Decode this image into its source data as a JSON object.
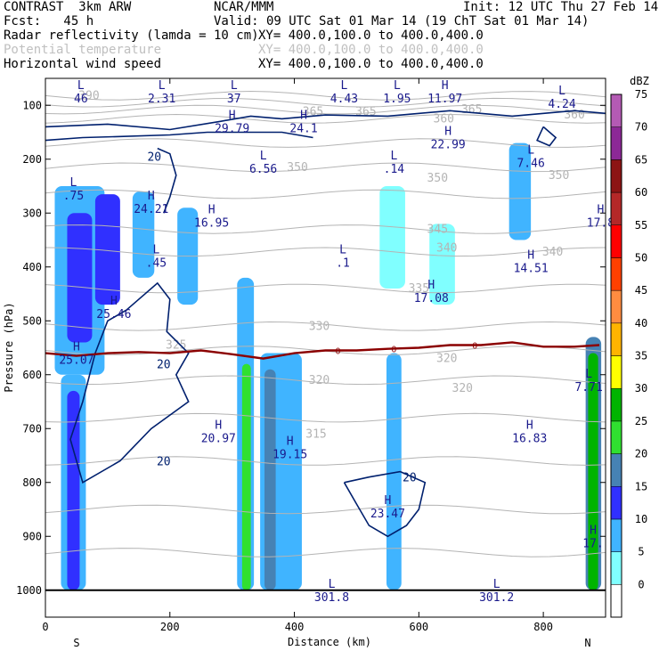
{
  "header": {
    "model": "CONTRAST  3km ARW",
    "org": "NCAR/MMM",
    "init": "Init: 12 UTC Thu 27 Feb 14",
    "fcst": "Fcst:   45 h",
    "valid": "Valid: 09 UTC Sat 01 Mar 14 (19 ChT Sat 01 Mar 14)",
    "fields": [
      {
        "name": "Radar reflectivity (lamda = 10 cm)",
        "xy": "XY= 400.0,100.0 to 400.0,400.0",
        "color": "#000000"
      },
      {
        "name": "Potential temperature",
        "xy": "XY= 400.0,100.0 to 400.0,400.0",
        "color": "#c0c0c0"
      },
      {
        "name": "Horizontal wind speed",
        "xy": "XY= 400.0,100.0 to 400.0,400.0",
        "color": "#000000"
      }
    ]
  },
  "chart_data": {
    "type": "heatmap",
    "title": "",
    "xlabel": "Distance (km)",
    "ylabel": "Pressure (hPa)",
    "xlim": [
      0,
      900
    ],
    "ylim": [
      1050,
      50
    ],
    "xticks": [
      0,
      200,
      400,
      600,
      800
    ],
    "yticks": [
      100,
      200,
      300,
      400,
      500,
      600,
      700,
      800,
      900,
      1000
    ],
    "x_end_labels": {
      "left": "S",
      "right": "N"
    },
    "colorbar": {
      "unit": "dBZ",
      "levels": [
        0,
        5,
        10,
        15,
        20,
        25,
        30,
        35,
        40,
        45,
        50,
        55,
        60,
        65,
        70,
        75
      ],
      "colors": [
        "#ffffff",
        "#80ffff",
        "#40b4ff",
        "#3030ff",
        "#4682b4",
        "#30e030",
        "#00b400",
        "#ffff00",
        "#ffb400",
        "#ff8c40",
        "#ff4000",
        "#ff0000",
        "#b42828",
        "#8c1414",
        "#8c2896",
        "#b45ab4"
      ]
    },
    "reflectivity_cells": [
      {
        "x": [
          15,
          95
        ],
        "p": [
          250,
          600
        ],
        "dbz": 10
      },
      {
        "x": [
          35,
          75
        ],
        "p": [
          300,
          540
        ],
        "dbz": 15
      },
      {
        "x": [
          25,
          65
        ],
        "p": [
          600,
          1000
        ],
        "dbz": 10
      },
      {
        "x": [
          35,
          55
        ],
        "p": [
          630,
          1000
        ],
        "dbz": 15
      },
      {
        "x": [
          80,
          120
        ],
        "p": [
          265,
          470
        ],
        "dbz": 15
      },
      {
        "x": [
          140,
          175
        ],
        "p": [
          260,
          420
        ],
        "dbz": 10
      },
      {
        "x": [
          212,
          245
        ],
        "p": [
          290,
          470
        ],
        "dbz": 10
      },
      {
        "x": [
          308,
          335
        ],
        "p": [
          420,
          1000
        ],
        "dbz": 10
      },
      {
        "x": [
          316,
          330
        ],
        "p": [
          580,
          1000
        ],
        "dbz": 25
      },
      {
        "x": [
          345,
          412
        ],
        "p": [
          560,
          1000
        ],
        "dbz": 10
      },
      {
        "x": [
          352,
          370
        ],
        "p": [
          590,
          1000
        ],
        "dbz": 20
      },
      {
        "x": [
          537,
          578
        ],
        "p": [
          250,
          440
        ],
        "dbz": 5
      },
      {
        "x": [
          548,
          572
        ],
        "p": [
          560,
          1000
        ],
        "dbz": 10
      },
      {
        "x": [
          617,
          658
        ],
        "p": [
          320,
          470
        ],
        "dbz": 5
      },
      {
        "x": [
          745,
          780
        ],
        "p": [
          170,
          350
        ],
        "dbz": 10
      },
      {
        "x": [
          868,
          893
        ],
        "p": [
          530,
          1000
        ],
        "dbz": 20
      },
      {
        "x": [
          872,
          888
        ],
        "p": [
          560,
          1000
        ],
        "dbz": 30
      }
    ],
    "theta_contour_labels": [
      {
        "x": 70,
        "p": 82,
        "text": "390"
      },
      {
        "x": 430,
        "p": 112,
        "text": "365"
      },
      {
        "x": 515,
        "p": 112,
        "text": "365"
      },
      {
        "x": 685,
        "p": 108,
        "text": "365"
      },
      {
        "x": 640,
        "p": 125,
        "text": "360"
      },
      {
        "x": 850,
        "p": 118,
        "text": "360"
      },
      {
        "x": 405,
        "p": 215,
        "text": "350"
      },
      {
        "x": 630,
        "p": 235,
        "text": "350"
      },
      {
        "x": 825,
        "p": 230,
        "text": "350"
      },
      {
        "x": 630,
        "p": 330,
        "text": "345"
      },
      {
        "x": 645,
        "p": 365,
        "text": "340"
      },
      {
        "x": 815,
        "p": 372,
        "text": "340"
      },
      {
        "x": 600,
        "p": 440,
        "text": "335"
      },
      {
        "x": 440,
        "p": 510,
        "text": "330"
      },
      {
        "x": 210,
        "p": 545,
        "text": "325"
      },
      {
        "x": 440,
        "p": 610,
        "text": "320"
      },
      {
        "x": 670,
        "p": 625,
        "text": "320"
      },
      {
        "x": 645,
        "p": 570,
        "text": "320"
      },
      {
        "x": 435,
        "p": 710,
        "text": "315"
      }
    ],
    "hl_labels": [
      {
        "x": 57,
        "p": 75,
        "mark": "L",
        "value": "46"
      },
      {
        "x": 187,
        "p": 75,
        "mark": "L",
        "value": "2.31"
      },
      {
        "x": 303,
        "p": 75,
        "mark": "L",
        "value": "37"
      },
      {
        "x": 480,
        "p": 75,
        "mark": "L",
        "value": "4.43"
      },
      {
        "x": 565,
        "p": 75,
        "mark": "L",
        "value": "1.95"
      },
      {
        "x": 642,
        "p": 75,
        "mark": "H",
        "value": "11.97"
      },
      {
        "x": 830,
        "p": 85,
        "mark": "L",
        "value": "4.24"
      },
      {
        "x": 300,
        "p": 130,
        "mark": "H",
        "value": "29.79"
      },
      {
        "x": 415,
        "p": 130,
        "mark": "H",
        "value": "24.1"
      },
      {
        "x": 647,
        "p": 160,
        "mark": "H",
        "value": "22.99"
      },
      {
        "x": 350,
        "p": 205,
        "mark": "L",
        "value": "6.56"
      },
      {
        "x": 560,
        "p": 205,
        "mark": "L",
        "value": ".14"
      },
      {
        "x": 780,
        "p": 195,
        "mark": "L",
        "value": "7.46"
      },
      {
        "x": 45,
        "p": 255,
        "mark": "L",
        "value": ".75"
      },
      {
        "x": 170,
        "p": 280,
        "mark": "H",
        "value": "24.21"
      },
      {
        "x": 267,
        "p": 305,
        "mark": "H",
        "value": "16.95"
      },
      {
        "x": 892,
        "p": 305,
        "mark": "H",
        "value": "17.8"
      },
      {
        "x": 178,
        "p": 380,
        "mark": "L",
        "value": ".45"
      },
      {
        "x": 478,
        "p": 380,
        "mark": "L",
        "value": ".1"
      },
      {
        "x": 780,
        "p": 390,
        "mark": "H",
        "value": "14.51"
      },
      {
        "x": 620,
        "p": 445,
        "mark": "H",
        "value": "17.08"
      },
      {
        "x": 110,
        "p": 475,
        "mark": "H",
        "value": "25.46"
      },
      {
        "x": 50,
        "p": 560,
        "mark": "H",
        "value": "25.07"
      },
      {
        "x": 873,
        "p": 610,
        "mark": "L",
        "value": "7.71"
      },
      {
        "x": 278,
        "p": 705,
        "mark": "H",
        "value": "20.97"
      },
      {
        "x": 778,
        "p": 705,
        "mark": "H",
        "value": "16.83"
      },
      {
        "x": 393,
        "p": 735,
        "mark": "H",
        "value": "19.15"
      },
      {
        "x": 550,
        "p": 845,
        "mark": "H",
        "value": "23.47"
      },
      {
        "x": 880,
        "p": 900,
        "mark": "H",
        "value": "17."
      },
      {
        "x": 460,
        "p": 1000,
        "mark": "L",
        "value": "301.8"
      },
      {
        "x": 725,
        "p": 1000,
        "mark": "L",
        "value": "301.2"
      }
    ],
    "wind_contour_labels": [
      {
        "x": 175,
        "p": 195,
        "text": "20"
      },
      {
        "x": 190,
        "p": 580,
        "text": "20"
      },
      {
        "x": 190,
        "p": 760,
        "text": "20"
      },
      {
        "x": 585,
        "p": 790,
        "text": "20"
      }
    ],
    "freezing_level": {
      "label": "0",
      "points": [
        [
          0,
          560
        ],
        [
          50,
          565
        ],
        [
          100,
          560
        ],
        [
          150,
          558
        ],
        [
          200,
          560
        ],
        [
          250,
          555
        ],
        [
          300,
          562
        ],
        [
          350,
          570
        ],
        [
          400,
          560
        ],
        [
          450,
          555
        ],
        [
          500,
          555
        ],
        [
          550,
          552
        ],
        [
          600,
          550
        ],
        [
          650,
          545
        ],
        [
          700,
          545
        ],
        [
          750,
          540
        ],
        [
          800,
          548
        ],
        [
          850,
          548
        ],
        [
          890,
          545
        ]
      ],
      "label_x": [
        470,
        560,
        690
      ]
    }
  }
}
